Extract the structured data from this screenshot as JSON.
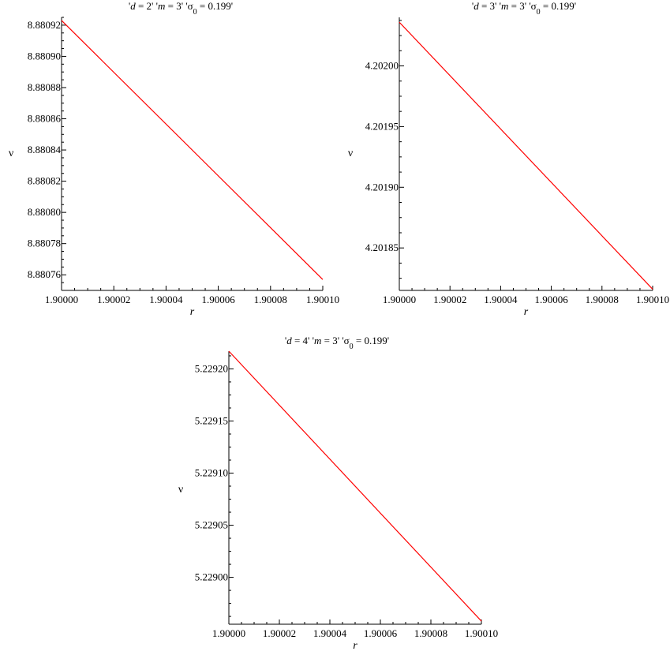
{
  "chart_data": [
    {
      "type": "line",
      "title": {
        "prefix": "'",
        "d_var": "d",
        "d_val": " = 2' '",
        "m_var": "m",
        "m_val": " = 3' 'σ",
        "sub": "0",
        "tail": " = 0.199'"
      },
      "xlabel": "r",
      "ylabel": "ν",
      "xlim": [
        1.9,
        1.9001
      ],
      "ylim": [
        8.88075,
        8.880925
      ],
      "xticks": [
        1.9,
        1.90002,
        1.90004,
        1.90006,
        1.90008,
        1.9001
      ],
      "xtick_labels": [
        "1.90000",
        "1.90002",
        "1.90004",
        "1.90006",
        "1.90008",
        "1.90010"
      ],
      "yticks": [
        8.88076,
        8.88078,
        8.8808,
        8.88082,
        8.88084,
        8.88086,
        8.88088,
        8.8809,
        8.88092
      ],
      "ytick_labels": [
        "8.88076",
        "8.88078",
        "8.88080",
        "8.88082",
        "8.88084",
        "8.88086",
        "8.88088",
        "8.88090",
        "8.88092"
      ],
      "series": [
        {
          "color": "#ff0000",
          "x": [
            1.9,
            1.9001
          ],
          "y": [
            8.880923,
            8.880757
          ]
        }
      ]
    },
    {
      "type": "line",
      "title": {
        "prefix": "'",
        "d_var": "d",
        "d_val": " = 3' '",
        "m_var": "m",
        "m_val": " = 3' 'σ",
        "sub": "0",
        "tail": " = 0.199'"
      },
      "xlabel": "r",
      "ylabel": "ν",
      "xlim": [
        1.9,
        1.9001
      ],
      "ylim": [
        4.201815,
        4.20204
      ],
      "xticks": [
        1.9,
        1.90002,
        1.90004,
        1.90006,
        1.90008,
        1.9001
      ],
      "xtick_labels": [
        "1.90000",
        "1.90002",
        "1.90004",
        "1.90006",
        "1.90008",
        "1.90010"
      ],
      "yticks": [
        4.20185,
        4.2019,
        4.20195,
        4.202
      ],
      "ytick_labels": [
        "4.20185",
        "4.20190",
        "4.20195",
        "4.20200"
      ],
      "series": [
        {
          "color": "#ff0000",
          "x": [
            1.9,
            1.9001
          ],
          "y": [
            4.202036,
            4.201816
          ]
        }
      ]
    },
    {
      "type": "line",
      "title": {
        "prefix": "'",
        "d_var": "d",
        "d_val": " = 4' '",
        "m_var": "m",
        "m_val": " = 3' 'σ",
        "sub": "0",
        "tail": " = 0.199'"
      },
      "xlabel": "r",
      "ylabel": "ν",
      "xlim": [
        1.9,
        1.9001
      ],
      "ylim": [
        5.228955,
        5.229217
      ],
      "xticks": [
        1.9,
        1.90002,
        1.90004,
        1.90006,
        1.90008,
        1.9001
      ],
      "xtick_labels": [
        "1.90000",
        "1.90002",
        "1.90004",
        "1.90006",
        "1.90008",
        "1.90010"
      ],
      "yticks": [
        5.229,
        5.22905,
        5.2291,
        5.22915,
        5.2292
      ],
      "ytick_labels": [
        "5.22900",
        "5.22905",
        "5.22910",
        "5.22915",
        "5.22920"
      ],
      "series": [
        {
          "color": "#ff0000",
          "x": [
            1.9,
            1.9001
          ],
          "y": [
            5.229217,
            5.228958
          ]
        }
      ]
    }
  ]
}
